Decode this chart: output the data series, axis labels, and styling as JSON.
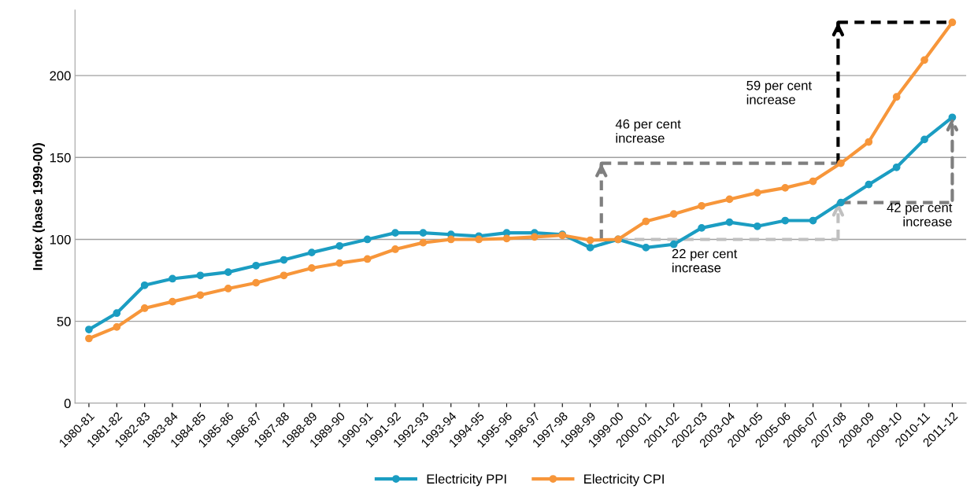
{
  "chart_data": {
    "type": "line",
    "ylabel": "Index (base 1999-00)",
    "categories": [
      "1980-81",
      "1981-82",
      "1982-83",
      "1983-84",
      "1984-85",
      "1985-86",
      "1986-87",
      "1987-88",
      "1988-89",
      "1989-90",
      "1990-91",
      "1991-92",
      "1992-93",
      "1993-94",
      "1994-95",
      "1995-96",
      "1996-97",
      "1997-98",
      "1998-99",
      "1999-00",
      "2000-01",
      "2001-02",
      "2002-03",
      "2003-04",
      "2004-05",
      "2005-06",
      "2006-07",
      "2007-08",
      "2008-09",
      "2009-10",
      "2010-11",
      "2011-12"
    ],
    "series": [
      {
        "name": "Electricity PPI",
        "color": "#1b9dc2",
        "values": [
          45,
          55,
          72,
          76,
          78,
          80,
          84,
          87.5,
          92,
          96,
          100,
          104,
          104,
          103,
          102,
          104,
          104,
          103,
          95,
          100,
          95,
          97,
          107,
          110.5,
          108,
          111.5,
          111.5,
          122.5,
          133.5,
          144,
          161,
          174.5
        ]
      },
      {
        "name": "Electricity CPI",
        "color": "#f7963a",
        "values": [
          39.5,
          46.5,
          58,
          62,
          66,
          70,
          73.5,
          78,
          82.5,
          85.5,
          88,
          94,
          98,
          100,
          100,
          100.5,
          101.5,
          102.5,
          99.5,
          100,
          111,
          115.5,
          120.5,
          124.5,
          128.5,
          131.5,
          135.5,
          146.5,
          159.5,
          187,
          209.5,
          232.5
        ]
      }
    ],
    "ylim": [
      0,
      240
    ],
    "yticks": [
      0,
      50,
      100,
      150,
      200
    ],
    "grid": "y",
    "legend": "bottom",
    "marker": "circle",
    "line_style": "solid",
    "annotations": [
      "46 per cent\nincrease",
      "59 per cent\nincrease",
      {
        "text": "22 per cent\nincrease",
        "x": "2001-02",
        "y": 97
      },
      {
        "text": "42 per cent\nincrease",
        "x": "2011-12",
        "y": 174.5
      }
    ]
  }
}
